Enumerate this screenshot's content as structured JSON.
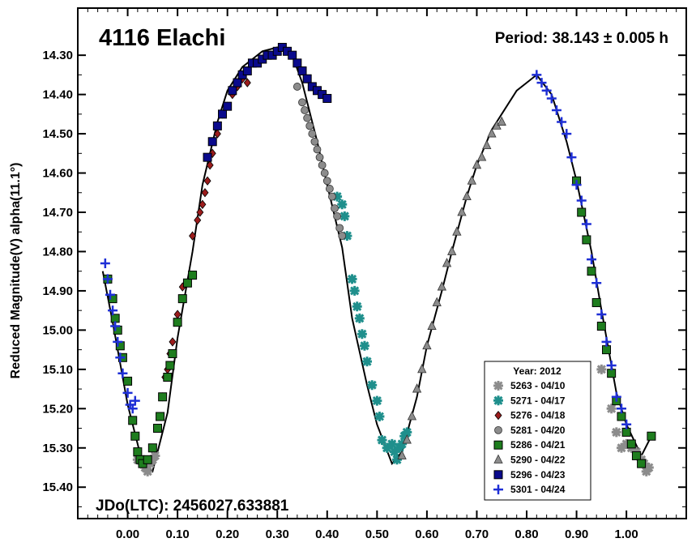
{
  "chart_data": {
    "type": "scatter",
    "title": "4116 Elachi",
    "period_label": "Period: 38.143 ± 0.005 h",
    "epoch_label": "JDo(LTC): 2456027.633881",
    "ylabel": "Reduced Magnitude(V) alpha(11.1°)",
    "xlabel": "",
    "xlim": [
      -0.1,
      1.12
    ],
    "ylim": [
      15.48,
      14.18
    ],
    "y_inverted": true,
    "x_ticks": [
      "0.00",
      "0.10",
      "0.20",
      "0.30",
      "0.40",
      "0.50",
      "0.60",
      "0.70",
      "0.80",
      "0.90",
      "1.00"
    ],
    "y_ticks": [
      "14.30",
      "14.40",
      "14.50",
      "14.60",
      "14.70",
      "14.80",
      "14.90",
      "15.00",
      "15.10",
      "15.20",
      "15.30",
      "15.40"
    ],
    "legend_title": "Year: 2012",
    "legend_position": "bottom-right",
    "fourier_curve": {
      "x": [
        -0.05,
        -0.03,
        0.0,
        0.03,
        0.05,
        0.08,
        0.1,
        0.13,
        0.15,
        0.18,
        0.2,
        0.23,
        0.25,
        0.27,
        0.3,
        0.33,
        0.35,
        0.38,
        0.4,
        0.43,
        0.45,
        0.48,
        0.5,
        0.53,
        0.55,
        0.58,
        0.6,
        0.63,
        0.65,
        0.68,
        0.7,
        0.73,
        0.75,
        0.78,
        0.8,
        0.82,
        0.85,
        0.88,
        0.9,
        0.93,
        0.95,
        0.98,
        1.0,
        1.03,
        1.05
      ],
      "y": [
        14.85,
        14.98,
        15.19,
        15.34,
        15.36,
        15.21,
        15.02,
        14.8,
        14.63,
        14.47,
        14.39,
        14.33,
        14.31,
        14.29,
        14.28,
        14.3,
        14.37,
        14.52,
        14.63,
        14.79,
        14.97,
        15.14,
        15.24,
        15.34,
        15.31,
        15.17,
        15.04,
        14.9,
        14.8,
        14.66,
        14.58,
        14.49,
        14.45,
        14.39,
        14.37,
        14.35,
        14.4,
        14.52,
        14.62,
        14.8,
        14.95,
        15.16,
        15.24,
        15.32,
        15.27
      ]
    },
    "series": [
      {
        "name": "5263 - 04/10",
        "marker": "asterisk",
        "color": "#8c8c8c",
        "x": [
          0.02,
          0.03,
          0.035,
          0.04,
          0.045,
          0.05,
          0.055,
          0.95,
          0.97,
          0.98,
          0.99,
          1.0,
          1.01,
          1.02,
          1.03,
          1.035,
          1.04,
          1.045
        ],
        "y": [
          15.33,
          15.34,
          15.35,
          15.36,
          15.34,
          15.33,
          15.32,
          15.1,
          15.2,
          15.26,
          15.3,
          15.29,
          15.3,
          15.31,
          15.33,
          15.34,
          15.36,
          15.35
        ]
      },
      {
        "name": "5271 - 04/17",
        "marker": "asterisk",
        "color": "#1f8f8c",
        "x": [
          0.42,
          0.43,
          0.435,
          0.44,
          0.45,
          0.455,
          0.46,
          0.465,
          0.47,
          0.475,
          0.48,
          0.49,
          0.5,
          0.505,
          0.51,
          0.52,
          0.53,
          0.535,
          0.54,
          0.545,
          0.55,
          0.555,
          0.56
        ],
        "y": [
          14.66,
          14.68,
          14.71,
          14.76,
          14.87,
          14.9,
          14.94,
          14.97,
          15.01,
          15.04,
          15.08,
          15.14,
          15.18,
          15.22,
          15.28,
          15.3,
          15.29,
          15.31,
          15.33,
          15.3,
          15.29,
          15.27,
          15.26
        ]
      },
      {
        "name": "5276 - 04/18",
        "marker": "diamond",
        "color": "#9b1c1c",
        "x": [
          0.07,
          0.075,
          0.08,
          0.085,
          0.09,
          0.1,
          0.11,
          0.13,
          0.14,
          0.145,
          0.15,
          0.155,
          0.16,
          0.165,
          0.17,
          0.18,
          0.19,
          0.2,
          0.21,
          0.22,
          0.23,
          0.24
        ],
        "y": [
          15.17,
          15.12,
          15.1,
          15.06,
          15.03,
          14.96,
          14.89,
          14.76,
          14.72,
          14.7,
          14.68,
          14.65,
          14.62,
          14.58,
          14.55,
          14.5,
          14.45,
          14.43,
          14.4,
          14.38,
          14.36,
          14.37
        ]
      },
      {
        "name": "5281 - 04/20",
        "marker": "circle",
        "color": "#8c8c8c",
        "x": [
          0.34,
          0.35,
          0.355,
          0.36,
          0.365,
          0.37,
          0.375,
          0.38,
          0.385,
          0.39,
          0.395,
          0.4,
          0.405,
          0.41,
          0.415,
          0.42,
          0.425,
          0.43
        ],
        "y": [
          14.38,
          14.42,
          14.44,
          14.46,
          14.48,
          14.5,
          14.52,
          14.54,
          14.56,
          14.58,
          14.6,
          14.62,
          14.64,
          14.66,
          14.69,
          14.71,
          14.74,
          14.76
        ]
      },
      {
        "name": "5286 - 04/21",
        "marker": "square",
        "color": "#1e7d1e",
        "x": [
          -0.04,
          -0.03,
          -0.025,
          -0.02,
          -0.015,
          -0.01,
          0.0,
          0.01,
          0.015,
          0.02,
          0.025,
          0.03,
          0.04,
          0.05,
          0.06,
          0.065,
          0.07,
          0.08,
          0.085,
          0.09,
          0.1,
          0.11,
          0.12,
          0.13,
          0.9,
          0.91,
          0.92,
          0.93,
          0.94,
          0.95,
          0.96,
          0.97,
          0.98,
          0.99,
          1.0,
          1.01,
          1.02,
          1.03,
          1.05
        ],
        "y": [
          14.87,
          14.92,
          14.97,
          15.0,
          15.04,
          15.07,
          15.13,
          15.23,
          15.27,
          15.31,
          15.33,
          15.34,
          15.33,
          15.3,
          15.25,
          15.22,
          15.17,
          15.12,
          15.09,
          15.06,
          14.98,
          14.92,
          14.88,
          14.86,
          14.62,
          14.7,
          14.77,
          14.85,
          14.93,
          14.99,
          15.05,
          15.11,
          15.18,
          15.22,
          15.26,
          15.29,
          15.32,
          15.34,
          15.27
        ]
      },
      {
        "name": "5290 - 04/22",
        "marker": "triangle",
        "color": "#8c8c8c",
        "x": [
          0.55,
          0.56,
          0.57,
          0.58,
          0.59,
          0.6,
          0.61,
          0.62,
          0.63,
          0.64,
          0.65,
          0.66,
          0.67,
          0.68,
          0.69,
          0.7,
          0.71,
          0.72,
          0.73,
          0.74,
          0.75
        ],
        "y": [
          15.32,
          15.28,
          15.22,
          15.15,
          15.1,
          15.04,
          14.99,
          14.93,
          14.89,
          14.83,
          14.8,
          14.75,
          14.7,
          14.66,
          14.62,
          14.58,
          14.56,
          14.53,
          14.5,
          14.48,
          14.47
        ]
      },
      {
        "name": "5296 - 04/23",
        "marker": "square",
        "color": "#0a0a8c",
        "x": [
          0.16,
          0.17,
          0.18,
          0.19,
          0.2,
          0.21,
          0.22,
          0.23,
          0.24,
          0.25,
          0.26,
          0.27,
          0.28,
          0.29,
          0.3,
          0.31,
          0.32,
          0.33,
          0.34,
          0.35,
          0.36,
          0.37,
          0.38,
          0.39,
          0.4
        ],
        "y": [
          14.56,
          14.52,
          14.48,
          14.45,
          14.43,
          14.39,
          14.37,
          14.35,
          14.34,
          14.32,
          14.32,
          14.31,
          14.3,
          14.3,
          14.29,
          14.28,
          14.29,
          14.3,
          14.32,
          14.34,
          14.36,
          14.38,
          14.39,
          14.4,
          14.41
        ]
      },
      {
        "name": "5301 - 04/24",
        "marker": "plus",
        "color": "#1e2fd6",
        "x": [
          -0.045,
          -0.04,
          -0.035,
          -0.03,
          -0.025,
          -0.02,
          -0.015,
          -0.01,
          0.0,
          0.005,
          0.01,
          0.015,
          0.82,
          0.83,
          0.84,
          0.85,
          0.86,
          0.87,
          0.88,
          0.89,
          0.9,
          0.91,
          0.92,
          0.93,
          0.94,
          0.95,
          0.96,
          0.97,
          0.98,
          0.99,
          1.0
        ],
        "y": [
          14.83,
          14.87,
          14.91,
          14.95,
          14.99,
          15.03,
          15.07,
          15.11,
          15.16,
          15.19,
          15.2,
          15.18,
          14.35,
          14.37,
          14.39,
          14.41,
          14.44,
          14.47,
          14.5,
          14.56,
          14.63,
          14.67,
          14.73,
          14.82,
          14.88,
          14.96,
          15.03,
          15.09,
          15.17,
          15.2,
          15.24
        ]
      }
    ]
  }
}
